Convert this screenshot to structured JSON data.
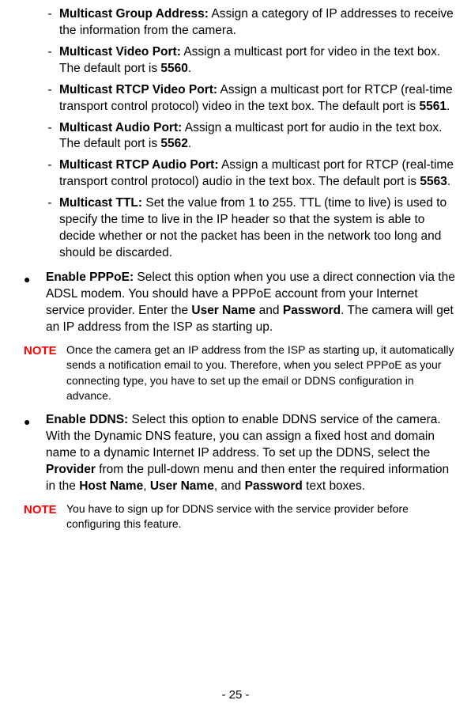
{
  "dash_items": [
    {
      "title": "Multicast Group Address:",
      "body_a": " Assign a category of IP addresses to receive the information from the camera."
    },
    {
      "title": "Multicast Video Port:",
      "body_a": " Assign a multicast port for video in the text box. The default port is ",
      "bold_a": "5560",
      "body_b": "."
    },
    {
      "title": "Multicast RTCP Video Port:",
      "body_a": " Assign a multicast port for RTCP (real-time transport control protocol) video in the text box. The default port is ",
      "bold_a": "5561",
      "body_b": "."
    },
    {
      "title": "Multicast Audio Port:",
      "body_a": " Assign a multicast port for audio in the text box. The default port is ",
      "bold_a": "5562",
      "body_b": "."
    },
    {
      "title": "Multicast RTCP Audio Port:",
      "body_a": " Assign a multicast port for RTCP (real-time transport control protocol) audio in the text box. The default port is ",
      "bold_a": "5563",
      "body_b": "."
    },
    {
      "title": "Multicast TTL:",
      "body_a": " Set the value from 1 to 255. TTL (time to live) is used to specify the time to live in the IP header so that the system is able to decide whether or not the packet has been in the network too long and should be discarded."
    }
  ],
  "bullet_pppoe": {
    "title": "Enable PPPoE:",
    "body_a": " Select this option when you use a direct connection via the ADSL modem. You should have a PPPoE account from your Internet service provider. Enter the ",
    "bold_a": "User Name",
    "body_b": " and ",
    "bold_b": "Password",
    "body_c": ". The camera will get an IP address from the ISP as starting up."
  },
  "note1": {
    "label": "NOTE",
    "text": "Once the camera get an IP address from the ISP as starting up, it automatically sends a notification email to you. Therefore, when you select PPPoE as your connecting type, you have to set up the email or DDNS configuration in advance."
  },
  "bullet_ddns": {
    "title": "Enable DDNS:",
    "body_a": " Select this option to enable DDNS service of the camera. With the Dynamic DNS feature, you can assign a fixed host and domain name to a dynamic Internet IP address. To set up the DDNS, select the ",
    "bold_a": "Provider",
    "body_b": " from the pull-down menu and then enter the required information in the ",
    "bold_b": "Host Name",
    "body_c": ", ",
    "bold_c": "User Name",
    "body_d": ", and ",
    "bold_d": "Password",
    "body_e": " text boxes."
  },
  "note2": {
    "label": "NOTE",
    "text": "You have to sign up for DDNS service with the service provider before configuring this feature."
  },
  "page_number": "- 25 -",
  "dash_char": "-",
  "bullet_char": "●"
}
